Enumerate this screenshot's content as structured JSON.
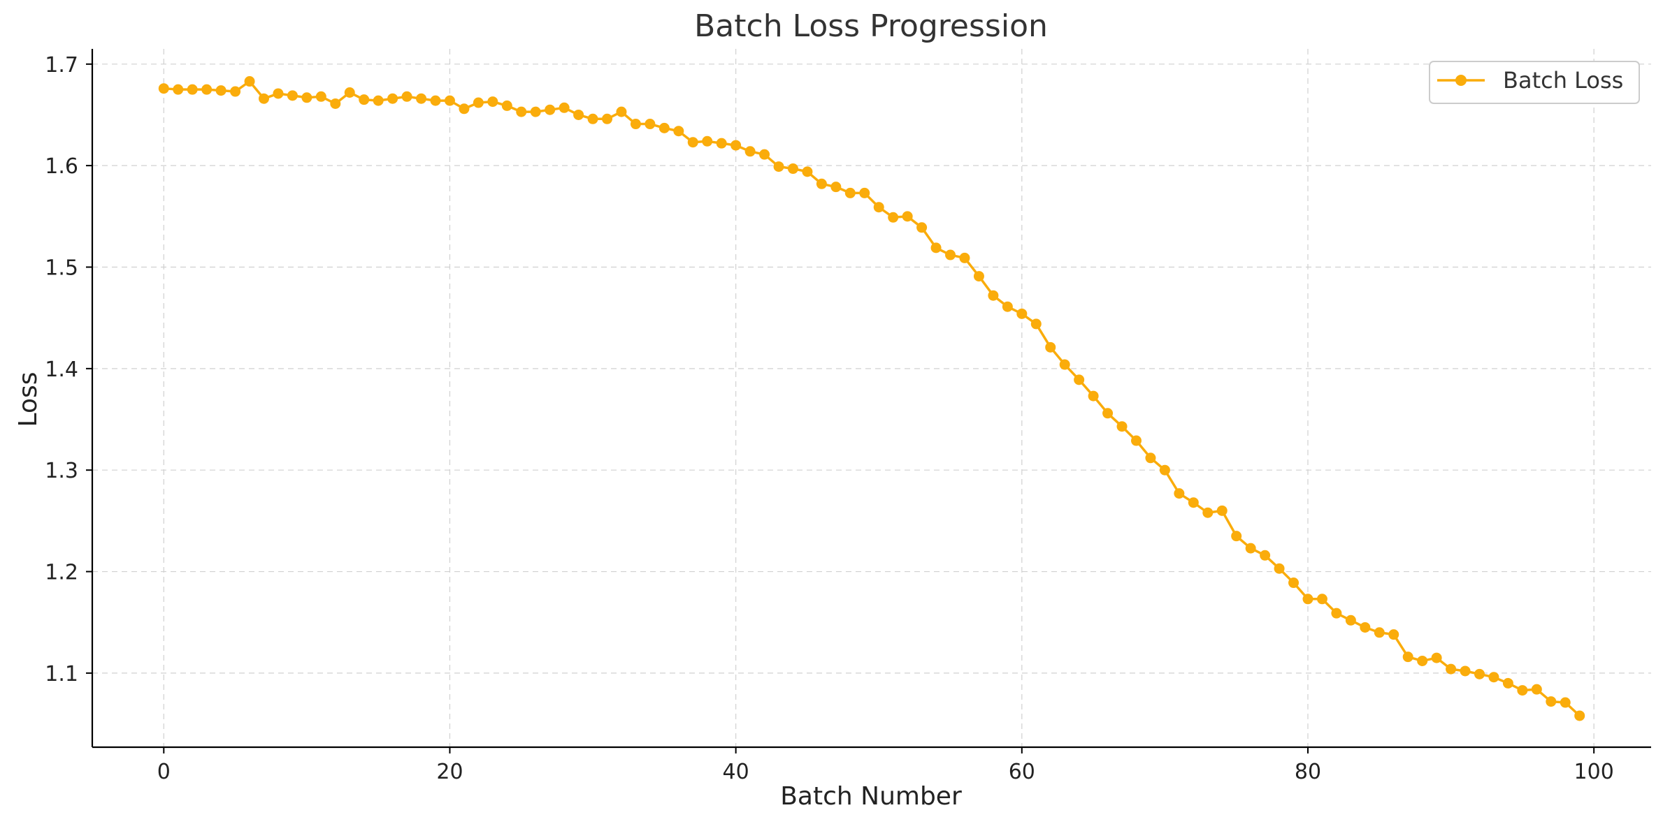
{
  "chart_data": {
    "type": "line",
    "title": "Batch Loss Progression",
    "xlabel": "Batch Number",
    "ylabel": "Loss",
    "xlim": [
      -5,
      104
    ],
    "ylim": [
      1.027,
      1.715
    ],
    "xticks": [
      0,
      20,
      40,
      60,
      80,
      100
    ],
    "yticks": [
      1.1,
      1.2,
      1.3,
      1.4,
      1.5,
      1.6,
      1.7
    ],
    "grid": true,
    "legend_position": "top-right",
    "series": [
      {
        "name": "Batch Loss",
        "color": "#FAAC0B",
        "marker": "circle",
        "x": [
          0,
          1,
          2,
          3,
          4,
          5,
          6,
          7,
          8,
          9,
          10,
          11,
          12,
          13,
          14,
          15,
          16,
          17,
          18,
          19,
          20,
          21,
          22,
          23,
          24,
          25,
          26,
          27,
          28,
          29,
          30,
          31,
          32,
          33,
          34,
          35,
          36,
          37,
          38,
          39,
          40,
          41,
          42,
          43,
          44,
          45,
          46,
          47,
          48,
          49,
          50,
          51,
          52,
          53,
          54,
          55,
          56,
          57,
          58,
          59,
          60,
          61,
          62,
          63,
          64,
          65,
          66,
          67,
          68,
          69,
          70,
          71,
          72,
          73,
          74,
          75,
          76,
          77,
          78,
          79,
          80,
          81,
          82,
          83,
          84,
          85,
          86,
          87,
          88,
          89,
          90,
          91,
          92,
          93,
          94,
          95,
          96,
          97,
          98,
          99
        ],
        "values": [
          1.676,
          1.675,
          1.675,
          1.675,
          1.674,
          1.673,
          1.683,
          1.666,
          1.671,
          1.669,
          1.667,
          1.668,
          1.661,
          1.672,
          1.665,
          1.664,
          1.666,
          1.668,
          1.666,
          1.664,
          1.664,
          1.656,
          1.662,
          1.663,
          1.659,
          1.653,
          1.653,
          1.655,
          1.657,
          1.65,
          1.646,
          1.646,
          1.653,
          1.641,
          1.641,
          1.637,
          1.634,
          1.623,
          1.624,
          1.622,
          1.62,
          1.614,
          1.611,
          1.599,
          1.597,
          1.594,
          1.582,
          1.579,
          1.573,
          1.573,
          1.559,
          1.549,
          1.55,
          1.539,
          1.519,
          1.512,
          1.509,
          1.491,
          1.472,
          1.461,
          1.454,
          1.444,
          1.421,
          1.404,
          1.389,
          1.373,
          1.356,
          1.343,
          1.329,
          1.312,
          1.3,
          1.277,
          1.268,
          1.258,
          1.26,
          1.235,
          1.223,
          1.216,
          1.203,
          1.189,
          1.173,
          1.173,
          1.159,
          1.152,
          1.145,
          1.14,
          1.138,
          1.116,
          1.112,
          1.115,
          1.104,
          1.102,
          1.099,
          1.096,
          1.09,
          1.083,
          1.084,
          1.072,
          1.071,
          1.058
        ]
      }
    ]
  }
}
